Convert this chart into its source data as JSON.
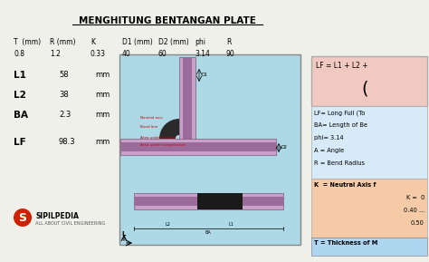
{
  "title": "MENGHITUNG BENTANGAN PLATE",
  "bg_color": "#f0f0eb",
  "table_headers": [
    "T  (mm)",
    "R (mm)",
    "K",
    "D1 (mm)",
    "D2 (mm)",
    "phi",
    "R"
  ],
  "table_values": [
    "0.8",
    "1.2",
    "0.33",
    "40",
    "60",
    "3.14",
    "90"
  ],
  "left_labels": [
    "L1",
    "L2",
    "BA",
    "LF"
  ],
  "left_values": [
    "58",
    "38",
    "2.3",
    "98.3"
  ],
  "left_unit": "mm",
  "right_box1_color": "#f2c9c0",
  "right_box1_text": "LF = L1 + L2 +",
  "right_box1_sub": "(",
  "right_box2_color": "#d6eaf8",
  "right_box2_lines": [
    "LF= Long Full (To",
    "BA= Length of Be",
    "phi= 3.14",
    "A = Angle",
    "R = Bend Radius"
  ],
  "right_box3_color": "#f5cba7",
  "right_box3_lines": [
    "K  = Neutral Axis f",
    "K =  0",
    "0.40 ...",
    "0.50"
  ],
  "right_box4_color": "#aed6f1",
  "right_box4_text": "T = Thickness of M",
  "diagram_bg": "#add8e6",
  "plate_color": "#c8a0c8",
  "plate_dark": "#9b6b9b",
  "bend_color": "#2a2a2a",
  "logo_text": "SIPILPEDIA",
  "logo_sub": "ALL ABOUT CIVIL ENGINEERING",
  "logo_color": "#cc2200"
}
